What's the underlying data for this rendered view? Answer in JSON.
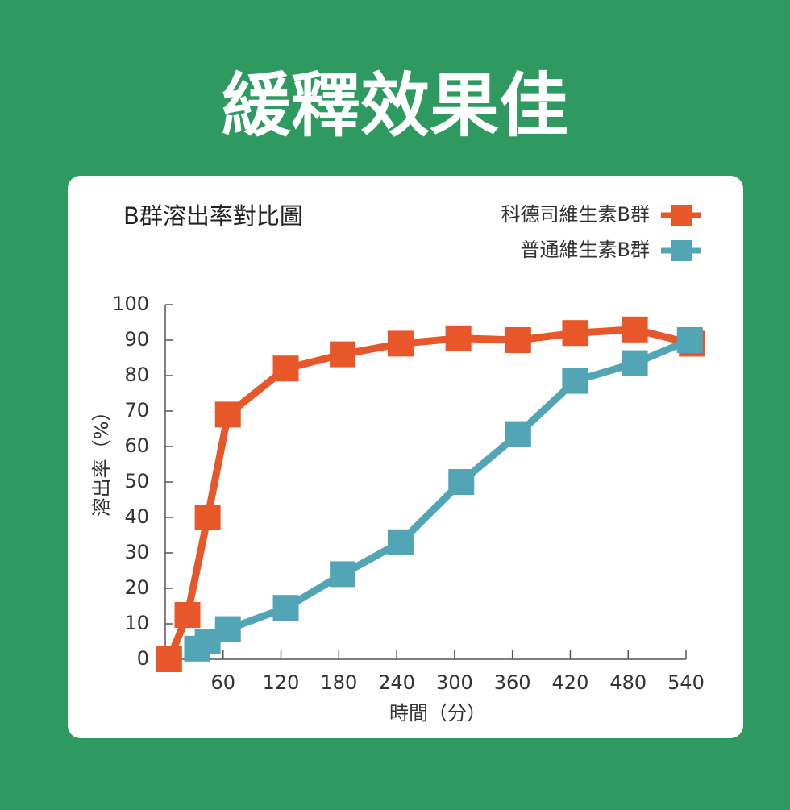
{
  "chart_data": {
    "type": "line",
    "page_title": "緩釋效果佳",
    "title": "B群溶出率對比圖",
    "x_label": "時間（分）",
    "y_label": "溶出率（%）",
    "xlim": [
      0,
      540
    ],
    "xticks": [
      60,
      120,
      180,
      240,
      300,
      360,
      420,
      480,
      540
    ],
    "ylim": [
      0,
      100
    ],
    "yticks": [
      0,
      10,
      20,
      30,
      40,
      50,
      60,
      70,
      80,
      90,
      100
    ],
    "legend": "top-right",
    "series": [
      {
        "name": "科德司維生素B群",
        "color": "#e8572a",
        "x": [
          4,
          23,
          44,
          65,
          125,
          184,
          244,
          304,
          366,
          425,
          487,
          546
        ],
        "values": [
          0,
          12.5,
          40,
          69,
          82,
          86,
          89,
          90.5,
          90,
          92,
          93,
          89
        ]
      },
      {
        "name": "普通維生素B群",
        "color": "#52a5b5",
        "x": [
          33,
          44,
          65,
          125,
          184,
          244,
          307,
          366,
          425,
          487,
          544
        ],
        "values": [
          3,
          5,
          8.5,
          14.5,
          24,
          33,
          50,
          63.5,
          78.5,
          83.5,
          90
        ]
      }
    ]
  }
}
